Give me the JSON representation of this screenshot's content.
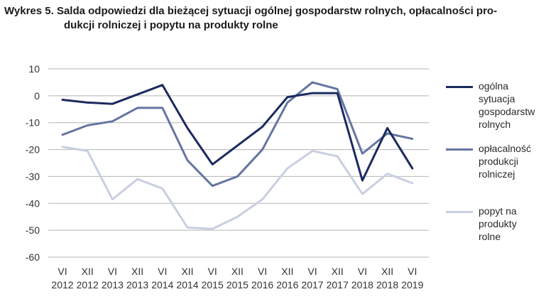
{
  "title": {
    "line1": "Wykres 5. Salda odpowiedzi dla bieżącej sytuacji ogólnej gospodarstw rolnych,  opłacalności pro-",
    "line2": "dukcji rolniczej i  popytu na produkty rolne"
  },
  "chart_data": {
    "type": "line",
    "title": "Wykres 5. Salda odpowiedzi dla bieżącej sytuacji ogólnej gospodarstw rolnych,  opłacalności produkcji rolniczej i  popytu na produkty rolne",
    "xlabel": "",
    "ylabel": "",
    "ylim": [
      -60,
      10
    ],
    "yticks": [
      10,
      0,
      -10,
      -20,
      -30,
      -40,
      -50,
      -60
    ],
    "grid": true,
    "legend_position": "right",
    "categories": [
      [
        "VI",
        "2012"
      ],
      [
        "XII",
        "2012"
      ],
      [
        "VI",
        "2013"
      ],
      [
        "XII",
        "2013"
      ],
      [
        "VI",
        "2014"
      ],
      [
        "XII",
        "2014"
      ],
      [
        "VI",
        "2015"
      ],
      [
        "XII",
        "2015"
      ],
      [
        "VI",
        "2016"
      ],
      [
        "XII",
        "2016"
      ],
      [
        "VI",
        "2017"
      ],
      [
        "XII",
        "2017"
      ],
      [
        "VI",
        "2018"
      ],
      [
        "XII",
        "2018"
      ],
      [
        "VI",
        "2019"
      ]
    ],
    "series": [
      {
        "name": "ogólna\nsytuacja\ngospodarstw\nrolnych",
        "color": "#1b2a5e",
        "values": [
          -1.5,
          -2.5,
          -3,
          0.5,
          4,
          -12,
          -25.5,
          -18.5,
          -11.5,
          -0.5,
          1,
          1,
          -31.5,
          -12,
          -27
        ]
      },
      {
        "name": "opłacalność\nprodukcji\nrolniczej",
        "color": "#6575a1",
        "values": [
          -14.5,
          -11,
          -9.5,
          -4.5,
          -4.5,
          -24,
          -33.5,
          -30,
          -20,
          -2.5,
          5,
          2.5,
          -21.5,
          -14,
          -16
        ]
      },
      {
        "name": "popyt na\nprodukty\nrolne",
        "color": "#c8cfe0",
        "values": [
          -19,
          -20.5,
          -38.5,
          -31,
          -34.5,
          -49,
          -49.5,
          -45,
          -38.5,
          -27,
          -20.5,
          -22.5,
          -36.5,
          -29,
          -32.5
        ]
      }
    ]
  }
}
